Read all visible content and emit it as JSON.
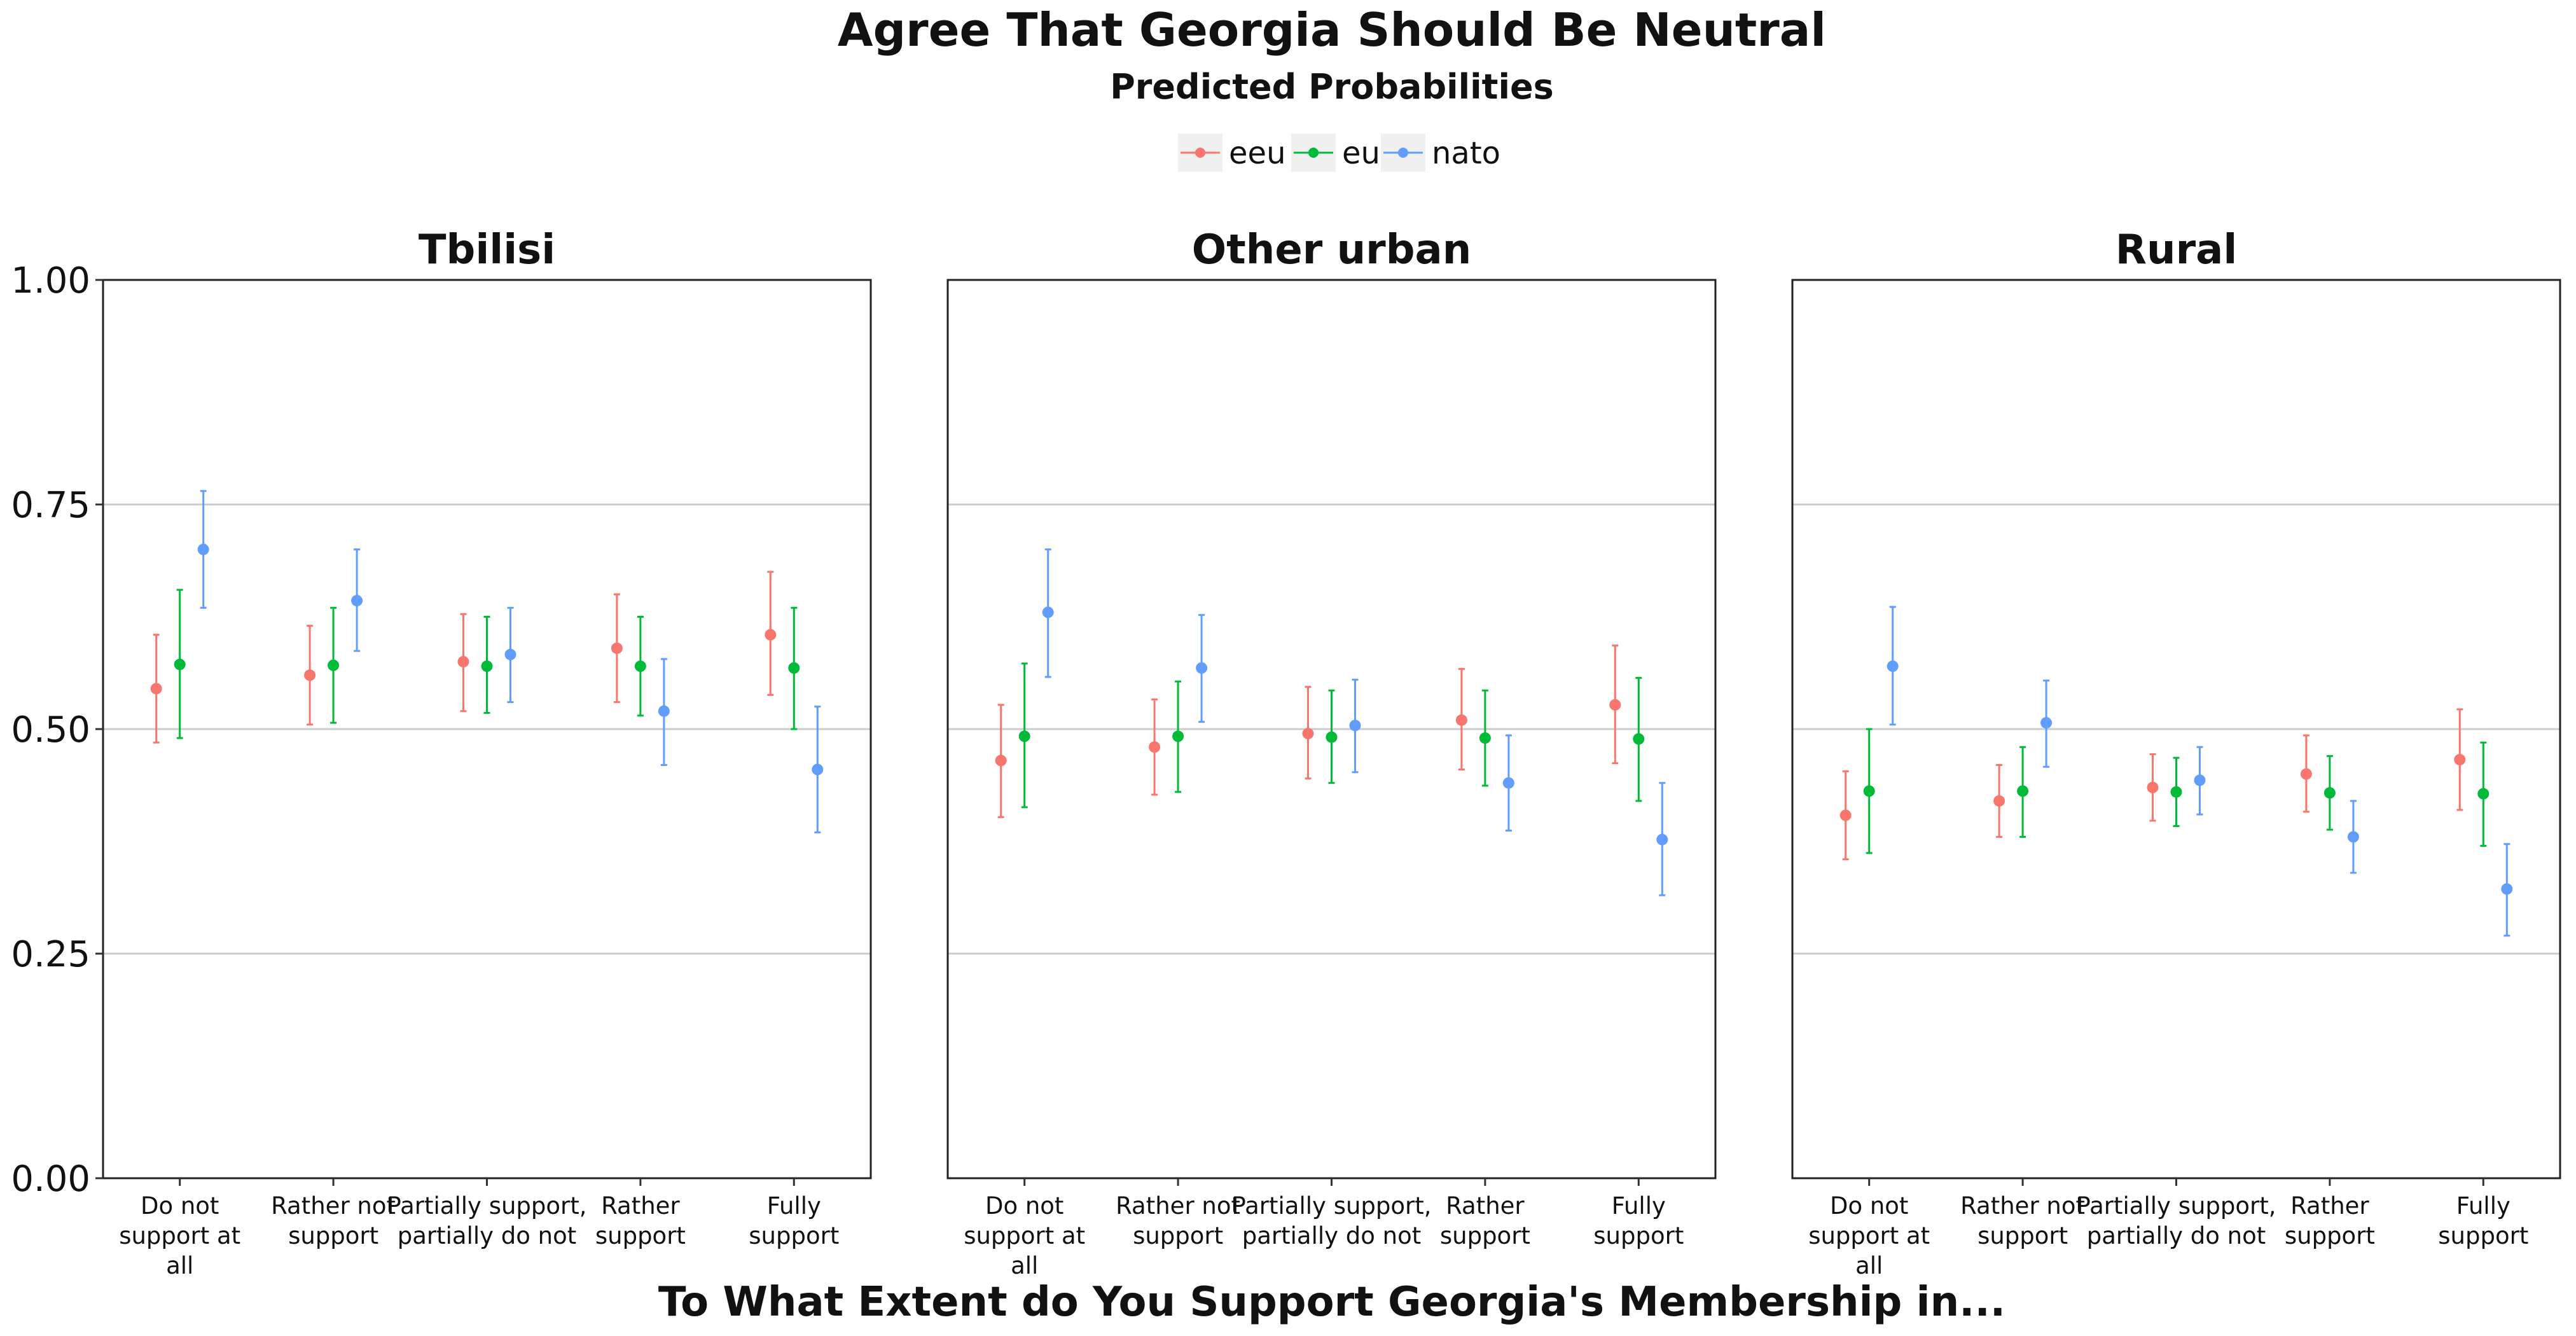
{
  "chart_data": {
    "type": "scatter",
    "title": "Agree That Georgia Should Be Neutral",
    "subtitle": "Predicted Probabilities",
    "xlabel": "To What Extent do You Support Georgia's Membership in...",
    "ylabel": "",
    "ylim": [
      0,
      1
    ],
    "yticks": [
      "0.00",
      "0.25",
      "0.50",
      "0.75",
      "1.00"
    ],
    "ytick_values": [
      0,
      0.25,
      0.5,
      0.75,
      1
    ],
    "grid": "horizontal",
    "legend_position": "top",
    "categories": [
      [
        "Do not",
        "support at",
        "all"
      ],
      [
        "Rather not",
        "support"
      ],
      [
        "Partially support,",
        "partially do not"
      ],
      [
        "Rather",
        "support"
      ],
      [
        "Fully",
        "support"
      ]
    ],
    "series_meta": [
      {
        "name": "eeu",
        "color": "#F8766D"
      },
      {
        "name": "eu",
        "color": "#00BA38"
      },
      {
        "name": "nato",
        "color": "#619CFF"
      }
    ],
    "facets": [
      {
        "title": "Tbilisi",
        "series": [
          {
            "name": "eeu",
            "values": [
              0.545,
              0.56,
              0.575,
              0.59,
              0.605
            ],
            "lower": [
              0.485,
              0.505,
              0.52,
              0.53,
              0.538
            ],
            "upper": [
              0.605,
              0.615,
              0.628,
              0.65,
              0.675
            ]
          },
          {
            "name": "eu",
            "values": [
              0.572,
              0.571,
              0.57,
              0.57,
              0.568
            ],
            "lower": [
              0.49,
              0.507,
              0.518,
              0.515,
              0.5
            ],
            "upper": [
              0.655,
              0.635,
              0.625,
              0.625,
              0.635
            ]
          },
          {
            "name": "nato",
            "values": [
              0.7,
              0.643,
              0.583,
              0.52,
              0.455
            ],
            "lower": [
              0.635,
              0.587,
              0.53,
              0.46,
              0.385
            ],
            "upper": [
              0.765,
              0.7,
              0.635,
              0.578,
              0.525
            ]
          }
        ]
      },
      {
        "title": "Other urban",
        "series": [
          {
            "name": "eeu",
            "values": [
              0.465,
              0.48,
              0.495,
              0.51,
              0.527
            ],
            "lower": [
              0.402,
              0.427,
              0.445,
              0.455,
              0.462
            ],
            "upper": [
              0.527,
              0.533,
              0.547,
              0.567,
              0.593
            ]
          },
          {
            "name": "eu",
            "values": [
              0.492,
              0.492,
              0.491,
              0.49,
              0.489
            ],
            "lower": [
              0.413,
              0.43,
              0.44,
              0.437,
              0.42
            ],
            "upper": [
              0.573,
              0.553,
              0.543,
              0.543,
              0.557
            ]
          },
          {
            "name": "nato",
            "values": [
              0.63,
              0.568,
              0.504,
              0.44,
              0.377
            ],
            "lower": [
              0.558,
              0.508,
              0.452,
              0.387,
              0.315
            ],
            "upper": [
              0.7,
              0.627,
              0.555,
              0.493,
              0.44
            ]
          }
        ]
      },
      {
        "title": "Rural",
        "series": [
          {
            "name": "eeu",
            "values": [
              0.404,
              0.42,
              0.435,
              0.45,
              0.466
            ],
            "lower": [
              0.355,
              0.38,
              0.398,
              0.408,
              0.41
            ],
            "upper": [
              0.453,
              0.46,
              0.472,
              0.493,
              0.522
            ]
          },
          {
            "name": "eu",
            "values": [
              0.431,
              0.431,
              0.43,
              0.429,
              0.428
            ],
            "lower": [
              0.362,
              0.38,
              0.392,
              0.388,
              0.37
            ],
            "upper": [
              0.5,
              0.48,
              0.468,
              0.47,
              0.485
            ]
          },
          {
            "name": "nato",
            "values": [
              0.57,
              0.507,
              0.443,
              0.38,
              0.322
            ],
            "lower": [
              0.505,
              0.458,
              0.405,
              0.34,
              0.27
            ],
            "upper": [
              0.636,
              0.554,
              0.48,
              0.42,
              0.372
            ]
          }
        ]
      }
    ]
  }
}
